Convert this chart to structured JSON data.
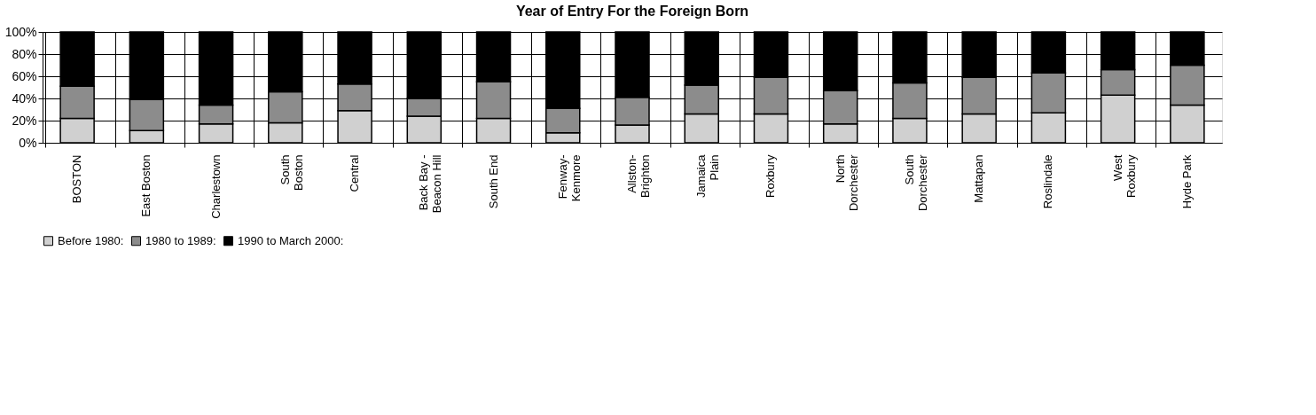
{
  "chart_data": {
    "type": "bar",
    "title": "Year of Entry For the Foreign Born",
    "categories": [
      "BOSTON",
      "East Boston",
      "Charlestown",
      "South\nBoston",
      "Central",
      "Back Bay -\nBeacon Hill",
      "South End",
      "Fenway-\nKenmore",
      "Allston-\nBrighton",
      "Jamaica\nPlain",
      "Roxbury",
      "North\nDorchester",
      "South\nDorchester",
      "Mattapan",
      "Roslindale",
      "West\nRoxbury",
      "Hyde Park"
    ],
    "stacked": true,
    "series": [
      {
        "name": "Before 1980:",
        "color": "#d0d0d0",
        "values": [
          22,
          11,
          17,
          18,
          29,
          24,
          22,
          9,
          16,
          26,
          26,
          17,
          22,
          26,
          27,
          43,
          34
        ]
      },
      {
        "name": "1980 to 1989:",
        "color": "#8c8c8c",
        "values": [
          29,
          28,
          17,
          28,
          24,
          16,
          33,
          22,
          25,
          26,
          33,
          30,
          32,
          33,
          36,
          23,
          36
        ]
      },
      {
        "name": "1990 to March 2000:",
        "color": "#000000",
        "values": [
          49,
          61,
          66,
          54,
          47,
          60,
          45,
          69,
          59,
          48,
          41,
          53,
          46,
          41,
          37,
          34,
          30
        ]
      }
    ],
    "ylim": [
      0,
      100
    ],
    "yticks": [
      {
        "value": 0,
        "label": "0%"
      },
      {
        "value": 20,
        "label": "20%"
      },
      {
        "value": 40,
        "label": "40%"
      },
      {
        "value": 60,
        "label": "60%"
      },
      {
        "value": 80,
        "label": "80%"
      },
      {
        "value": 100,
        "label": "100%"
      }
    ],
    "grid": true,
    "legend": "bottom"
  }
}
